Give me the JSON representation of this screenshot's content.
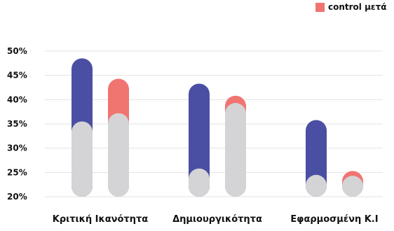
{
  "chart_data": {
    "type": "bar",
    "title": "",
    "xlabel": "",
    "ylabel": "",
    "ylim": [
      20,
      50
    ],
    "y_ticks": [
      "20%",
      "25%",
      "30%",
      "35%",
      "40%",
      "45%",
      "50%"
    ],
    "y_tick_values": [
      20,
      25,
      30,
      35,
      40,
      45,
      50
    ],
    "grid": true,
    "legend_position": "top-right",
    "categories": [
      "Κριτική Ικανότητα",
      "Δημιουργικότητα",
      "Εφαρμοσμένη Κ.Ι"
    ],
    "series": [
      {
        "name": "",
        "color": "#4a4fa3",
        "before": [
          35.5,
          25.8,
          24.5
        ],
        "after": [
          48.5,
          43.3,
          35.8
        ]
      },
      {
        "name": "control μετά",
        "color": "#f07470",
        "before": [
          37.2,
          39.3,
          24.3
        ],
        "after": [
          44.3,
          40.8,
          25.3
        ]
      }
    ],
    "base_color": "#d4d4d6"
  }
}
